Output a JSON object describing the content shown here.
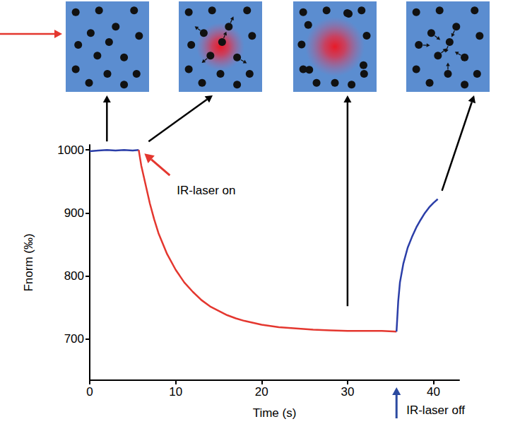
{
  "chart_data": {
    "type": "line",
    "x_label": "Time (s)",
    "y_label": "Fnorm (‰)",
    "xlim": [
      0,
      43
    ],
    "ylim": [
      635,
      1008
    ],
    "xticks": [
      0,
      10,
      20,
      30,
      40
    ],
    "yticks": [
      700,
      800,
      900,
      1000
    ],
    "grid": false,
    "series": [
      {
        "color": "#2b3ea8",
        "x": [
          0,
          1,
          2,
          3,
          4,
          5,
          5.7
        ],
        "values": [
          998,
          999,
          1000,
          999,
          1000,
          999,
          1000
        ]
      },
      {
        "color": "#e4372f",
        "x": [
          5.7,
          6,
          6.5,
          7,
          7.5,
          8,
          9,
          10,
          11,
          12,
          13,
          14,
          15,
          16,
          17,
          18,
          19,
          20,
          22,
          24,
          26,
          28,
          30,
          32,
          34,
          35.7
        ],
        "values": [
          1000,
          975,
          945,
          915,
          890,
          868,
          835,
          810,
          790,
          775,
          762,
          752,
          745,
          738,
          733,
          729,
          726,
          723,
          719,
          717,
          715,
          714,
          713,
          713,
          713,
          712
        ]
      },
      {
        "color": "#2b3ea8",
        "x": [
          35.7,
          35.9,
          36.1,
          36.5,
          37,
          37.5,
          38,
          38.5,
          39,
          39.5,
          40,
          40.5
        ],
        "values": [
          712,
          760,
          790,
          820,
          845,
          862,
          877,
          889,
          900,
          909,
          916,
          922
        ]
      }
    ],
    "annotations": [
      {
        "text": "IR-laser on",
        "x": 5.7,
        "y": 1000,
        "color": "#e4372f"
      },
      {
        "text": "IR-laser off",
        "x": 35.7,
        "y": 712,
        "color": "#2b4aa0"
      }
    ]
  }
}
